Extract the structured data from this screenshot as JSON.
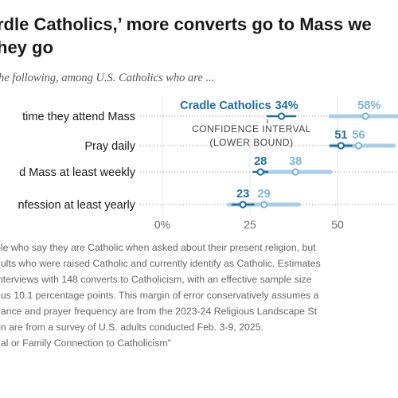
{
  "title_lines": [
    "rdle Catholics,’ more converts go to Mass we",
    "hey go"
  ],
  "subtitle": "he following, among U.S. Catholics who are ...",
  "notes": [
    "ple who say they are Catholic when asked about their present religion, but",
    "dults who were raised Catholic and currently identify as Catholic. Estimates",
    "interviews with 148 converts to Catholicism, with an effective sample size",
    "nus 10.1 percentage points. This margin of error conservatively assumes a",
    "dance and prayer frequency are from the 2023-24 Religious Landscape St",
    "on are from a survey of U.S. adults conducted Feb. 3-9, 2025.",
    "nal or Family Connection to Catholicism”"
  ],
  "colors": {
    "cradle": "#1b6f9e",
    "convert": "#79b4d9",
    "convert_band": "#a9cfe8",
    "axis_text": "#666666"
  },
  "chart_data": {
    "type": "dot-range",
    "xlim": [
      0,
      60
    ],
    "ticks": [
      0,
      25,
      50
    ],
    "tick_labels": [
      "0%",
      "25",
      "50"
    ],
    "legend_cradle_label": "Cradle Catholics",
    "annotation_lines": [
      "CONFIDENCE INTERVAL",
      "(LOWER BOUND)"
    ],
    "rows": [
      {
        "label": "time they attend Mass",
        "cradle": 34,
        "cradle_label": "34%",
        "cradle_ci": [
          30,
          38
        ],
        "convert": 58,
        "convert_label": "58%",
        "convert_ci": [
          48,
          68
        ]
      },
      {
        "label": "Pray daily",
        "cradle": 51,
        "cradle_label": "51",
        "cradle_ci": [
          48,
          54
        ],
        "convert": 56,
        "convert_label": "56",
        "convert_ci": [
          48,
          66
        ]
      },
      {
        "label": "d Mass at least weekly",
        "cradle": 28,
        "cradle_label": "28",
        "cradle_ci": [
          26,
          30
        ],
        "convert": 38,
        "convert_label": "38",
        "convert_ci": [
          28,
          48
        ]
      },
      {
        "label": "nfession at least yearly",
        "cradle": 23,
        "cradle_label": "23",
        "cradle_ci": [
          20,
          26
        ],
        "convert": 29,
        "convert_label": "29",
        "convert_ci": [
          19,
          39
        ]
      }
    ]
  }
}
